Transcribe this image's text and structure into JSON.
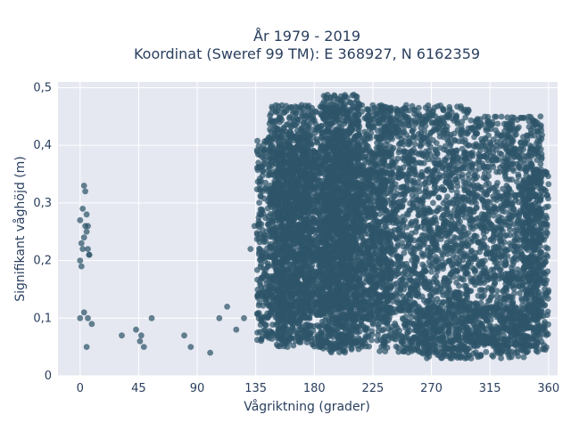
{
  "chart_data": {
    "type": "scatter",
    "title_line1": "År 1979 - 2019",
    "title_line2": "Koordinat (Sweref 99 TM): E 368927, N 6162359",
    "xlabel": "Vågriktning (grader)",
    "ylabel": "Signifikant våghöjd (m)",
    "xlim": [
      -17,
      367
    ],
    "ylim": [
      0,
      0.51
    ],
    "xticks": [
      0,
      45,
      90,
      135,
      180,
      225,
      270,
      315,
      360
    ],
    "xtick_labels": [
      "0",
      "45",
      "90",
      "135",
      "180",
      "225",
      "270",
      "315",
      "360"
    ],
    "yticks": [
      0,
      0.1,
      0.2,
      0.3,
      0.4,
      0.5
    ],
    "ytick_labels": [
      "0",
      "0,1",
      "0,2",
      "0,3",
      "0,4",
      "0,5"
    ],
    "grid": true,
    "marker_color": "#2e5569",
    "background_color": "#e5e8f1",
    "point_groups": [
      {
        "x": [
          0,
          1,
          2,
          3,
          4,
          5,
          6,
          7
        ],
        "y": [
          0.2,
          0.19,
          0.29,
          0.33,
          0.32,
          0.28,
          0.26,
          0.21
        ]
      },
      {
        "x": [
          0,
          1,
          2,
          3,
          4,
          5,
          6,
          7
        ],
        "y": [
          0.27,
          0.23,
          0.22,
          0.24,
          0.26,
          0.25,
          0.22,
          0.21
        ]
      },
      {
        "x": [
          0,
          3,
          6,
          9,
          5,
          32,
          43,
          46,
          47,
          49,
          55
        ],
        "y": [
          0.1,
          0.11,
          0.1,
          0.09,
          0.05,
          0.07,
          0.08,
          0.06,
          0.07,
          0.05,
          0.1
        ]
      },
      {
        "x": [
          80,
          85,
          100,
          107,
          113,
          120,
          126,
          131,
          134
        ],
        "y": [
          0.07,
          0.05,
          0.04,
          0.1,
          0.12,
          0.08,
          0.1,
          0.22,
          0.26
        ]
      }
    ],
    "dense_regions": [
      {
        "x": [
          136,
          177
        ],
        "y": [
          0.06,
          0.42
        ]
      },
      {
        "x": [
          145,
          240
        ],
        "y": [
          0.1,
          0.47
        ]
      },
      {
        "x": [
          150,
          230
        ],
        "y": [
          0.05,
          0.4
        ]
      },
      {
        "x": [
          185,
          215
        ],
        "y": [
          0.04,
          0.49
        ]
      },
      {
        "x": [
          230,
          300
        ],
        "y": [
          0.04,
          0.47
        ]
      },
      {
        "x": [
          260,
          345
        ],
        "y": [
          0.03,
          0.12
        ]
      },
      {
        "x": [
          300,
          355
        ],
        "y": [
          0.05,
          0.45
        ]
      },
      {
        "x": [
          340,
          360
        ],
        "y": [
          0.04,
          0.36
        ]
      }
    ]
  }
}
